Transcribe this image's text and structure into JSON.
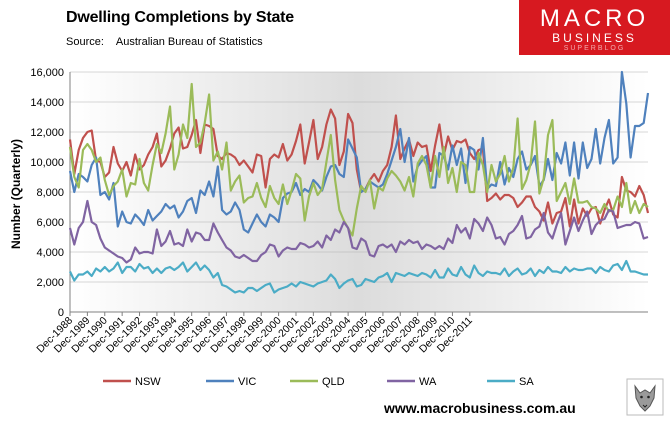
{
  "header": {
    "title": "Dwelling Completions by State",
    "source_label": "Source:",
    "source_text": "Australian Bureau of Statistics"
  },
  "logo": {
    "line1": "MACRO",
    "line2": "BUSINESS",
    "line3": "SUPERBLOG",
    "bg": "#d71920"
  },
  "footer": {
    "url": "www.macrobusiness.com.au"
  },
  "colors": {
    "NSW": "#c0504d",
    "VIC": "#4f81bd",
    "QLD": "#9bbb59",
    "WA": "#8064a2",
    "SA": "#4bacc6"
  },
  "chart_data": {
    "type": "line",
    "title": "Dwelling Completions by State",
    "xlabel": "",
    "ylabel": "Number (Quarterly)",
    "ylim": [
      0,
      16000
    ],
    "yticks": [
      "0",
      "2,000",
      "4,000",
      "6,000",
      "8,000",
      "10,000",
      "12,000",
      "14,000",
      "16,000"
    ],
    "x_tick_labels": [
      "Dec-1988",
      "Dec-1989",
      "Dec-1990",
      "Dec-1991",
      "Dec-1992",
      "Dec-1993",
      "Dec-1994",
      "Dec-1995",
      "Dec-1996",
      "Dec-1997",
      "Dec-1998",
      "Dec-1999",
      "Dec-2000",
      "Dec-2001",
      "Dec-2002",
      "Dec-2003",
      "Dec-2004",
      "Dec-2005",
      "Dec-2006",
      "Dec-2007",
      "Dec-2008",
      "Dec-2009",
      "Dec-2010",
      "Dec-2011"
    ],
    "x_start": "Dec-1988",
    "x_frequency": "quarterly",
    "grid": "horizontal",
    "legend_position": "bottom",
    "series": [
      {
        "name": "NSW",
        "color": "#c0504d",
        "values": [
          11500,
          9200,
          10800,
          11600,
          12000,
          12100,
          10100,
          10000,
          9000,
          9300,
          11000,
          9900,
          9400,
          10000,
          9100,
          10500,
          9500,
          9800,
          10500,
          11000,
          11900,
          9700,
          10100,
          10900,
          11900,
          12300,
          10900,
          11000,
          11800,
          12800,
          10600,
          12500,
          12400,
          12200,
          10400,
          10200,
          10600,
          10500,
          10300,
          9800,
          10100,
          9700,
          9300,
          10500,
          10400,
          8300,
          10200,
          10500,
          10300,
          11200,
          10100,
          10500,
          11400,
          12500,
          9900,
          11300,
          12800,
          10200,
          11000,
          12500,
          13500,
          12900,
          9800,
          10700,
          13200,
          12600,
          9500,
          8000,
          8200,
          8800,
          9200,
          8700,
          9400,
          9800,
          11000,
          13100,
          10200,
          10900,
          11500,
          10400,
          11300,
          11000,
          11100,
          9400,
          11100,
          12500,
          10400,
          11700,
          10800,
          11400,
          11300,
          11500,
          10600,
          10200,
          10800,
          10900,
          7400,
          7600,
          7900,
          7500,
          7800,
          7800,
          7600,
          7000,
          7300,
          7700,
          7700,
          7000,
          6700,
          6100,
          7300,
          5900,
          6600,
          6700,
          7600,
          5700,
          7500,
          5900,
          6900,
          6400,
          6900,
          7000,
          5900,
          6800,
          7500,
          6500,
          6300,
          9000,
          8100,
          8000,
          7700,
          8400,
          7800,
          6600
        ]
      },
      {
        "name": "VIC",
        "color": "#4f81bd",
        "values": [
          9400,
          8000,
          9200,
          9000,
          8700,
          9800,
          10300,
          7800,
          8000,
          7500,
          8600,
          5700,
          6700,
          6000,
          5900,
          6500,
          6200,
          5800,
          6800,
          6100,
          6400,
          6700,
          7200,
          6900,
          7100,
          6300,
          6700,
          7400,
          7600,
          6600,
          8100,
          7800,
          8700,
          7700,
          9700,
          6800,
          6500,
          6700,
          7300,
          6800,
          5500,
          5300,
          5900,
          6500,
          6000,
          5700,
          6500,
          6300,
          6000,
          7600,
          7900,
          8000,
          8600,
          7800,
          8200,
          8000,
          8800,
          8500,
          8100,
          9000,
          9700,
          9800,
          9200,
          9000,
          11500,
          10900,
          10300,
          8000,
          8200,
          8700,
          8500,
          8300,
          8500,
          9200,
          10100,
          11000,
          12200,
          10000,
          11600,
          8700,
          9700,
          10100,
          10400,
          8300,
          8300,
          10600,
          10400,
          9500,
          11100,
          9800,
          10900,
          8600,
          11000,
          10800,
          9500,
          11600,
          8200,
          8500,
          8400,
          10000,
          8500,
          9600,
          9000,
          10200,
          10700,
          9500,
          9800,
          10400,
          8400,
          8800,
          10200,
          8800,
          10600,
          9900,
          11300,
          9100,
          11300,
          8900,
          11300,
          9600,
          10200,
          12200,
          9900,
          11600,
          12800,
          9900,
          10300,
          16000,
          13900,
          10300,
          12400,
          12400,
          12600,
          14600
        ]
      },
      {
        "name": "QLD",
        "color": "#9bbb59",
        "values": [
          11000,
          9000,
          8300,
          10800,
          11200,
          10800,
          10000,
          10300,
          8800,
          7800,
          8400,
          8700,
          9500,
          7700,
          8600,
          8500,
          10200,
          8600,
          8100,
          9800,
          11200,
          10600,
          11900,
          13700,
          9500,
          10500,
          12500,
          11600,
          15200,
          11000,
          11300,
          12600,
          14500,
          10100,
          10700,
          9500,
          11300,
          8100,
          8700,
          9100,
          7300,
          7600,
          7700,
          8600,
          7600,
          7000,
          8400,
          7600,
          7200,
          8500,
          7200,
          8100,
          9200,
          8900,
          6100,
          7700,
          8600,
          7800,
          8200,
          10000,
          11800,
          8800,
          6800,
          6100,
          5600,
          5100,
          6900,
          8400,
          8000,
          8800,
          6900,
          8300,
          8100,
          8900,
          9400,
          9100,
          8700,
          8100,
          9000,
          7700,
          9900,
          10400,
          9800,
          8300,
          10400,
          9000,
          11000,
          8600,
          9600,
          8000,
          10000,
          9800,
          8000,
          8000,
          10600,
          9800,
          8000,
          9800,
          8700,
          9200,
          10400,
          8700,
          9600,
          12900,
          8200,
          8800,
          9900,
          12700,
          7900,
          8900,
          11800,
          12800,
          7400,
          8000,
          8600,
          7200,
          8900,
          7300,
          7300,
          7400,
          7000,
          6900,
          6600,
          7200,
          6700,
          6800,
          7700,
          7000,
          8600,
          6600,
          7400,
          6600,
          7200,
          7000
        ]
      },
      {
        "name": "WA",
        "color": "#8064a2",
        "values": [
          5600,
          4500,
          5600,
          6000,
          7400,
          6000,
          5800,
          4900,
          4300,
          4100,
          3900,
          3700,
          3600,
          3300,
          3500,
          4300,
          3900,
          4000,
          4000,
          3900,
          5500,
          4400,
          4700,
          5400,
          4500,
          4600,
          4400,
          5500,
          4700,
          5300,
          5200,
          4800,
          4800,
          5900,
          5300,
          4800,
          4300,
          4100,
          3700,
          3600,
          3800,
          3600,
          3400,
          3400,
          3800,
          4000,
          4500,
          4400,
          3700,
          4100,
          4300,
          4200,
          4200,
          4600,
          4500,
          4300,
          4400,
          4700,
          4300,
          5100,
          4800,
          5500,
          5300,
          6000,
          5600,
          4300,
          4200,
          4900,
          4700,
          3800,
          3700,
          4400,
          4500,
          4300,
          4500,
          4000,
          4700,
          4500,
          4800,
          4600,
          4700,
          4200,
          4500,
          4400,
          4200,
          4400,
          4200,
          4900,
          4600,
          5800,
          5300,
          5600,
          4900,
          6200,
          5900,
          5400,
          6300,
          5800,
          4900,
          5000,
          4500,
          5200,
          5400,
          5800,
          6400,
          4900,
          5000,
          5500,
          5700,
          6600,
          5300,
          4900,
          5800,
          6600,
          4500,
          5400,
          6300,
          5400,
          6100,
          6700,
          5200,
          5800,
          6100,
          6200,
          6800,
          6700,
          5600,
          5700,
          5800,
          5800,
          6000,
          5900,
          4900,
          5000
        ]
      },
      {
        "name": "SA",
        "color": "#4bacc6",
        "values": [
          2700,
          2100,
          2500,
          2500,
          2700,
          2400,
          2900,
          2700,
          3000,
          2700,
          2900,
          3300,
          2600,
          3000,
          3000,
          2700,
          3200,
          2900,
          3000,
          2600,
          2900,
          2600,
          2900,
          3000,
          2800,
          3000,
          3300,
          2700,
          3000,
          3300,
          2800,
          3100,
          2800,
          2300,
          2600,
          1800,
          1700,
          1500,
          1300,
          1400,
          1300,
          1600,
          1600,
          1400,
          1600,
          1800,
          1900,
          1300,
          1500,
          1600,
          1700,
          1900,
          1700,
          2000,
          1900,
          1800,
          1700,
          1900,
          2000,
          2100,
          2500,
          2200,
          1600,
          1900,
          2100,
          2200,
          1700,
          1800,
          2200,
          2100,
          2000,
          2300,
          2400,
          2600,
          2000,
          2600,
          2500,
          2400,
          2600,
          2500,
          2400,
          2600,
          2500,
          2300,
          2800,
          2300,
          2300,
          2900,
          2500,
          2400,
          3000,
          2500,
          2300,
          3100,
          2600,
          2400,
          2700,
          2600,
          2600,
          2500,
          2900,
          2400,
          2700,
          2900,
          2500,
          2600,
          2900,
          2400,
          2800,
          2600,
          3000,
          2700,
          2700,
          2600,
          3000,
          2700,
          2900,
          2800,
          2800,
          2900,
          2900,
          2600,
          3000,
          2800,
          2700,
          3100,
          3200,
          2800,
          3400,
          2700,
          2700,
          2600,
          2500,
          2500
        ]
      }
    ]
  }
}
